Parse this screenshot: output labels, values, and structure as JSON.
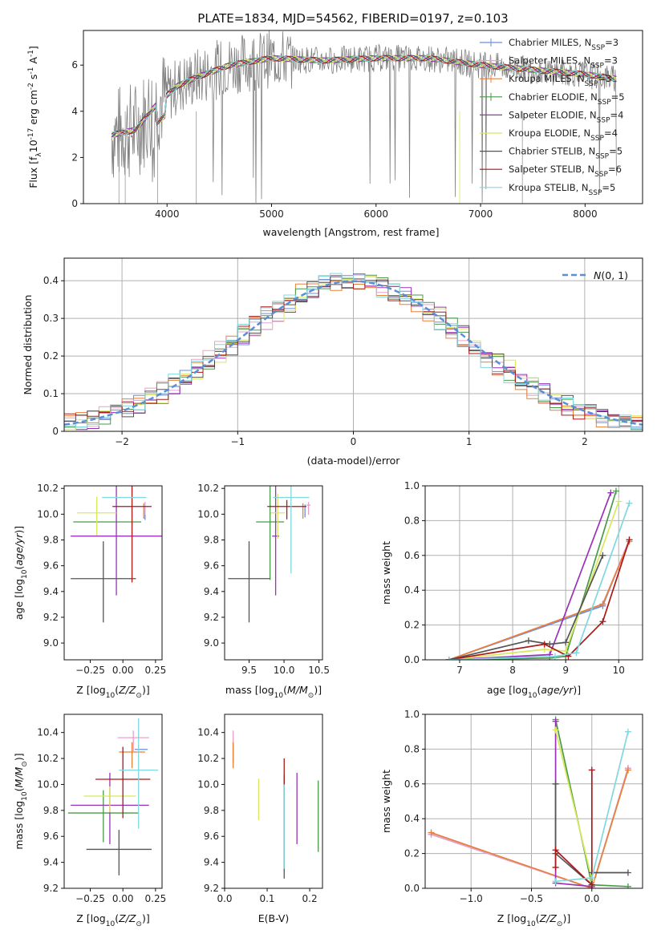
{
  "title": "PLATE=1834, MJD=54562, FIBERID=0197, z=0.103",
  "colors": {
    "Chabrier MILES": "#6a8fd8",
    "Salpeter MILES": "#e8a0c8",
    "Kroupa MILES": "#e8803a",
    "Chabrier ELODIE": "#4a9a4a",
    "Salpeter ELODIE": "#9a32b8",
    "Kroupa ELODIE": "#d8e85a",
    "Chabrier STELIB": "#555555",
    "Salpeter STELIB": "#aa1818",
    "Kroupa STELIB": "#7fd8e0"
  },
  "chart_data": [
    {
      "type": "line",
      "name": "spectrum",
      "xlabel": "wavelength [Angstrom, rest frame]",
      "ylabel": "Flux [f_λ10^-17 erg cm^-2 s^-1 A^-1]",
      "xlim": [
        3200,
        8550
      ],
      "ylim": [
        0,
        7.5
      ],
      "xticks": [
        4000,
        5000,
        6000,
        7000,
        8000
      ],
      "yticks": [
        0,
        2,
        4,
        6
      ],
      "legend_position": "right",
      "series": [
        {
          "name": "Chabrier MILES, N_SSP=3"
        },
        {
          "name": "Salpeter MILES, N_SSP=3"
        },
        {
          "name": "Kroupa MILES, N_SSP=3"
        },
        {
          "name": "Chabrier ELODIE, N_SSP=5"
        },
        {
          "name": "Salpeter ELODIE, N_SSP=4"
        },
        {
          "name": "Kroupa ELODIE, N_SSP=4"
        },
        {
          "name": "Chabrier STELIB, N_SSP=5"
        },
        {
          "name": "Salpeter STELIB, N_SSP=6"
        },
        {
          "name": "Kroupa STELIB, N_SSP=5"
        }
      ],
      "continuum": {
        "x": [
          3500,
          3700,
          3900,
          4100,
          4300,
          4600,
          5000,
          5500,
          6000,
          6500,
          7000,
          7500,
          8000,
          8300
        ],
        "y": [
          3.0,
          3.2,
          4.3,
          5.1,
          5.5,
          6.0,
          6.3,
          6.2,
          6.3,
          6.3,
          6.0,
          5.8,
          5.6,
          5.4
        ]
      }
    },
    {
      "type": "line",
      "name": "residual-histogram",
      "xlabel": "(data-model)/error",
      "ylabel": "Normed distribution",
      "xlim": [
        -2.5,
        2.5
      ],
      "ylim": [
        0,
        0.46
      ],
      "xticks": [
        -2,
        -1,
        0,
        1,
        2
      ],
      "yticks": [
        0.0,
        0.1,
        0.2,
        0.3,
        0.4
      ],
      "legend": "N(0,1)",
      "legend_position": "top-right",
      "gaussian": {
        "mu": 0,
        "sigma": 1
      }
    },
    {
      "type": "scatter",
      "name": "age-vs-Z",
      "xlabel": "Z [log10(Z/Z⊙)]",
      "ylabel": "age [log10(age/yr)]",
      "xlim": [
        -0.45,
        0.3
      ],
      "ylim": [
        8.87,
        10.22
      ],
      "xticks": [
        -0.25,
        0.0,
        0.25
      ],
      "yticks": [
        9.0,
        9.2,
        9.4,
        9.6,
        9.8,
        10.0,
        10.2
      ],
      "points": [
        {
          "m": "Chabrier MILES",
          "x": 0.17,
          "y": 10.03,
          "xe": 0.0,
          "ye": 0.05
        },
        {
          "m": "Salpeter MILES",
          "x": 0.17,
          "y": 10.07,
          "xe": 0.0,
          "ye": 0.05
        },
        {
          "m": "Kroupa MILES",
          "x": 0.16,
          "y": 10.05,
          "xe": 0.0,
          "ye": 0.07
        },
        {
          "m": "Chabrier ELODIE",
          "x": -0.12,
          "y": 9.94,
          "xe": 0.26,
          "ye": 0.0
        },
        {
          "m": "Salpeter ELODIE",
          "x": -0.05,
          "y": 9.83,
          "xe": 0.35,
          "ye": 0.82
        },
        {
          "m": "Kroupa ELODIE",
          "x": -0.2,
          "y": 10.01,
          "xe": 0.15,
          "ye": 0.25
        },
        {
          "m": "Chabrier STELIB",
          "x": -0.15,
          "y": 9.5,
          "xe": 0.25,
          "ye": 0.58
        },
        {
          "m": "Salpeter STELIB",
          "x": 0.07,
          "y": 10.06,
          "xe": 0.15,
          "ye": 1.08
        },
        {
          "m": "Kroupa STELIB",
          "x": 0.01,
          "y": 10.13,
          "xe": 0.17,
          "ye": 0.0
        }
      ]
    },
    {
      "type": "scatter",
      "name": "age-vs-mass",
      "xlabel": "mass [log10(M/M⊙)]",
      "ylabel": "",
      "xlim": [
        9.15,
        10.55
      ],
      "ylim": [
        8.87,
        10.22
      ],
      "xticks": [
        9.5,
        10.0,
        10.5
      ],
      "yticks": [
        9.0,
        9.2,
        9.4,
        9.6,
        9.8,
        10.0,
        10.2
      ],
      "points": [
        {
          "m": "Chabrier MILES",
          "x": 10.3,
          "y": 10.05,
          "xe": 0.0,
          "ye": 0.05
        },
        {
          "m": "Salpeter MILES",
          "x": 10.35,
          "y": 10.07,
          "xe": 0.03,
          "ye": 0.05
        },
        {
          "m": "Kroupa MILES",
          "x": 10.27,
          "y": 10.05,
          "xe": 0.0,
          "ye": 0.07
        },
        {
          "m": "Chabrier ELODIE",
          "x": 9.8,
          "y": 9.94,
          "xe": 0.2,
          "ye": 0.8
        },
        {
          "m": "Salpeter ELODIE",
          "x": 9.88,
          "y": 9.83,
          "xe": 0.05,
          "ye": 0.82
        },
        {
          "m": "Kroupa ELODIE",
          "x": 9.91,
          "y": 10.01,
          "xe": 0.1,
          "ye": 0.3
        },
        {
          "m": "Chabrier STELIB",
          "x": 9.5,
          "y": 9.5,
          "xe": 0.3,
          "ye": 0.58
        },
        {
          "m": "Salpeter STELIB",
          "x": 10.04,
          "y": 10.06,
          "xe": 0.28,
          "ye": 0.1
        },
        {
          "m": "Kroupa STELIB",
          "x": 10.1,
          "y": 10.13,
          "xe": 0.26,
          "ye": 1.08
        }
      ]
    },
    {
      "type": "line",
      "name": "mass-weight-vs-age",
      "xlabel": "age [log10(age/yr)]",
      "ylabel": "mass weight",
      "xlim": [
        6.35,
        10.45
      ],
      "ylim": [
        0,
        1.0
      ],
      "xticks": [
        7,
        8,
        9,
        10
      ],
      "yticks": [
        0.0,
        0.2,
        0.4,
        0.6,
        0.8,
        1.0
      ],
      "series": [
        {
          "m": "Chabrier MILES",
          "x": [
            6.8,
            9.7,
            10.2
          ],
          "y": [
            0.0,
            0.31,
            0.69
          ]
        },
        {
          "m": "Salpeter MILES",
          "x": [
            6.8,
            9.7,
            10.2
          ],
          "y": [
            0.0,
            0.32,
            0.69
          ]
        },
        {
          "m": "Kroupa MILES",
          "x": [
            6.8,
            9.7,
            10.2
          ],
          "y": [
            0.0,
            0.32,
            0.68
          ]
        },
        {
          "m": "Chabrier ELODIE",
          "x": [
            6.8,
            8.7,
            9.0,
            9.95
          ],
          "y": [
            0.0,
            0.01,
            0.02,
            0.97
          ]
        },
        {
          "m": "Salpeter ELODIE",
          "x": [
            6.8,
            8.7,
            9.85
          ],
          "y": [
            0.0,
            0.03,
            0.96
          ]
        },
        {
          "m": "Kroupa ELODIE",
          "x": [
            6.8,
            8.6,
            9.0,
            10.0
          ],
          "y": [
            0.0,
            0.06,
            0.05,
            0.91
          ]
        },
        {
          "m": "Chabrier STELIB",
          "x": [
            6.8,
            8.3,
            8.7,
            9.0,
            9.7
          ],
          "y": [
            0.0,
            0.11,
            0.09,
            0.1,
            0.6
          ]
        },
        {
          "m": "Salpeter STELIB",
          "x": [
            6.8,
            8.6,
            9.05,
            9.7,
            10.2
          ],
          "y": [
            0.0,
            0.09,
            0.02,
            0.22,
            0.69
          ]
        },
        {
          "m": "Kroupa STELIB",
          "x": [
            6.8,
            8.8,
            9.2,
            10.2
          ],
          "y": [
            0.0,
            0.02,
            0.04,
            0.9
          ]
        }
      ]
    },
    {
      "type": "scatter",
      "name": "mass-vs-Z",
      "xlabel": "Z [log10(Z/Z⊙)]",
      "ylabel": "mass [log10(M/M⊙)]",
      "xlim": [
        -0.45,
        0.3
      ],
      "ylim": [
        9.2,
        10.54
      ],
      "xticks": [
        -0.25,
        0.0,
        0.25
      ],
      "yticks": [
        9.2,
        9.4,
        9.6,
        9.8,
        10.0,
        10.2,
        10.4
      ],
      "points": [
        {
          "m": "Chabrier MILES",
          "x": 0.14,
          "y": 10.27,
          "xe": 0.05,
          "ye": 0.0
        },
        {
          "m": "Salpeter MILES",
          "x": 0.08,
          "y": 10.36,
          "xe": 0.12,
          "ye": 0.11
        },
        {
          "m": "Kroupa MILES",
          "x": 0.07,
          "y": 10.25,
          "xe": 0.1,
          "ye": 0.15
        },
        {
          "m": "Chabrier ELODIE",
          "x": -0.15,
          "y": 9.78,
          "xe": 0.27,
          "ye": 0.35
        },
        {
          "m": "Salpeter ELODIE",
          "x": -0.1,
          "y": 9.84,
          "xe": 0.3,
          "ye": 0.5
        },
        {
          "m": "Kroupa ELODIE",
          "x": -0.1,
          "y": 9.91,
          "xe": 0.2,
          "ye": 0.15
        },
        {
          "m": "Chabrier STELIB",
          "x": -0.03,
          "y": 9.5,
          "xe": 0.25,
          "ye": 0.3
        },
        {
          "m": "Salpeter STELIB",
          "x": 0.0,
          "y": 10.04,
          "xe": 0.21,
          "ye": 0.5
        },
        {
          "m": "Kroupa STELIB",
          "x": 0.12,
          "y": 10.11,
          "xe": 0.15,
          "ye": 0.8
        }
      ]
    },
    {
      "type": "scatter",
      "name": "mass-vs-EBV",
      "xlabel": "E(B-V)",
      "ylabel": "",
      "xlim": [
        0.0,
        0.23
      ],
      "ylim": [
        9.2,
        10.54
      ],
      "xticks": [
        0.0,
        0.1,
        0.2
      ],
      "yticks": [
        9.2,
        9.4,
        9.6,
        9.8,
        10.0,
        10.2,
        10.4
      ],
      "points": [
        {
          "m": "Chabrier MILES",
          "x": 0.02,
          "y": 10.27,
          "ye": 0.1
        },
        {
          "m": "Salpeter MILES",
          "x": 0.02,
          "y": 10.36,
          "ye": 0.11
        },
        {
          "m": "Kroupa MILES",
          "x": 0.02,
          "y": 10.25,
          "ye": 0.15
        },
        {
          "m": "Chabrier ELODIE",
          "x": 0.22,
          "y": 9.78,
          "ye": 0.5
        },
        {
          "m": "Salpeter ELODIE",
          "x": 0.17,
          "y": 9.84,
          "ye": 0.5
        },
        {
          "m": "Kroupa ELODIE",
          "x": 0.08,
          "y": 9.91,
          "ye": 0.27
        },
        {
          "m": "Chabrier STELIB",
          "x": 0.14,
          "y": 9.7,
          "ye": 0.75
        },
        {
          "m": "Salpeter STELIB",
          "x": 0.14,
          "y": 9.8,
          "ye": 0.8
        },
        {
          "m": "Kroupa STELIB",
          "x": 0.14,
          "y": 9.7,
          "ye": 0.6
        }
      ]
    },
    {
      "type": "line",
      "name": "mass-weight-vs-Z",
      "xlabel": "Z [log10(Z/Z⊙)]",
      "ylabel": "mass weight",
      "xlim": [
        -1.38,
        0.42
      ],
      "ylim": [
        0,
        1.0
      ],
      "xticks": [
        -1.0,
        -0.5,
        0.0
      ],
      "yticks": [
        0.0,
        0.2,
        0.4,
        0.6,
        0.8,
        1.0
      ],
      "series": [
        {
          "m": "Chabrier MILES",
          "x": [
            -1.33,
            0.0,
            0.3
          ],
          "y": [
            0.31,
            0.0,
            0.69
          ]
        },
        {
          "m": "Salpeter MILES",
          "x": [
            -1.33,
            0.0,
            0.3
          ],
          "y": [
            0.31,
            0.0,
            0.69
          ]
        },
        {
          "m": "Kroupa MILES",
          "x": [
            -1.33,
            0.0,
            0.3
          ],
          "y": [
            0.32,
            0.0,
            0.68
          ]
        },
        {
          "m": "Chabrier ELODIE",
          "x": [
            -0.3,
            0.0,
            0.3
          ],
          "y": [
            0.97,
            0.02,
            0.01
          ]
        },
        {
          "m": "Salpeter ELODIE",
          "x": [
            -0.3,
            -0.3,
            0.0
          ],
          "y": [
            0.96,
            0.03,
            0.01
          ]
        },
        {
          "m": "Kroupa ELODIE",
          "x": [
            -0.3,
            0.0,
            0.0
          ],
          "y": [
            0.91,
            0.05,
            0.04
          ]
        },
        {
          "m": "Chabrier STELIB",
          "x": [
            -0.3,
            -0.3,
            0.0,
            0.0,
            0.3
          ],
          "y": [
            0.6,
            0.2,
            0.02,
            0.09,
            0.09
          ]
        },
        {
          "m": "Salpeter STELIB",
          "x": [
            -0.3,
            -0.3,
            0.0,
            0.0
          ],
          "y": [
            0.12,
            0.22,
            0.02,
            0.68
          ]
        },
        {
          "m": "Kroupa STELIB",
          "x": [
            -0.3,
            0.0,
            0.3
          ],
          "y": [
            0.04,
            0.06,
            0.9
          ]
        }
      ]
    }
  ]
}
